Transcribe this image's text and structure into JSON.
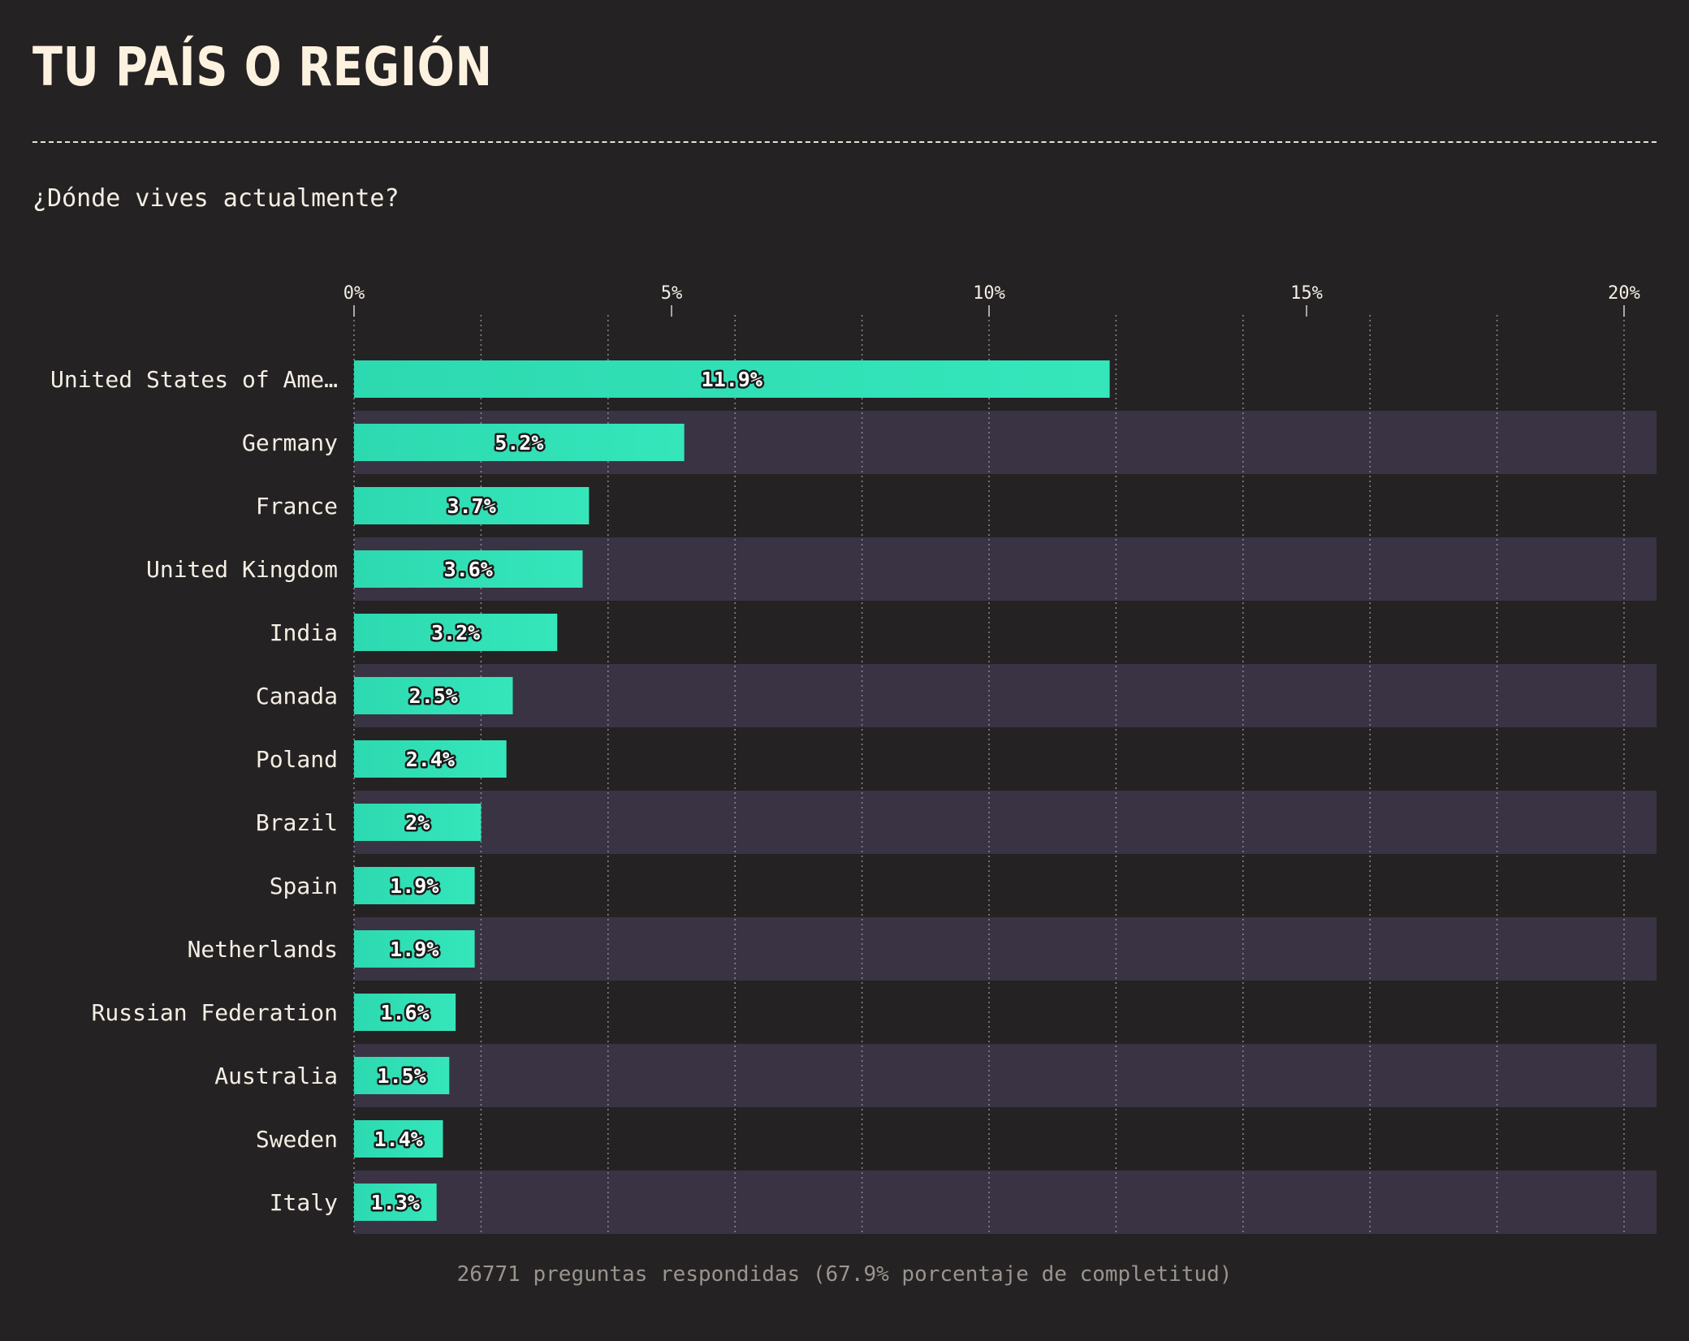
{
  "title": "TU PAÍS O REGIÓN",
  "question": "¿Dónde vives actualmente?",
  "footer": "26771 preguntas respondidas (67.9% porcentaje de completitud)",
  "colors": {
    "background": "#252223",
    "bar": "#2dd9b0",
    "bar_gradient_end": "#35e6bb",
    "band": "#3a3344",
    "text": "#f4eee4",
    "grid": "#8d8790"
  },
  "chart_data": {
    "type": "bar",
    "orientation": "horizontal",
    "categories": [
      "United States of Ame…",
      "Germany",
      "France",
      "United Kingdom",
      "India",
      "Canada",
      "Poland",
      "Brazil",
      "Spain",
      "Netherlands",
      "Russian Federation",
      "Australia",
      "Sweden",
      "Italy"
    ],
    "values": [
      11.9,
      5.2,
      3.7,
      3.6,
      3.2,
      2.5,
      2.4,
      2,
      1.9,
      1.9,
      1.6,
      1.5,
      1.4,
      1.3
    ],
    "value_labels": [
      "11.9%",
      "5.2%",
      "3.7%",
      "3.6%",
      "3.2%",
      "2.5%",
      "2.4%",
      "2%",
      "1.9%",
      "1.9%",
      "1.6%",
      "1.5%",
      "1.4%",
      "1.3%"
    ],
    "x_ticks": [
      0,
      5,
      10,
      15,
      20
    ],
    "x_tick_labels": [
      "0%",
      "5%",
      "10%",
      "15%",
      "20%"
    ],
    "x_minor_step": 2,
    "xlim": [
      0,
      20.5
    ],
    "grid": true,
    "alternating_row_bands": true
  }
}
